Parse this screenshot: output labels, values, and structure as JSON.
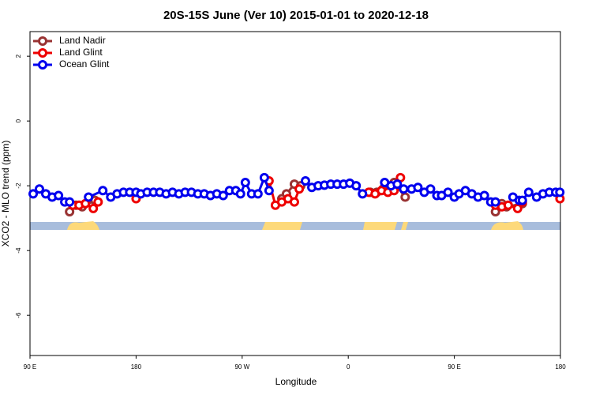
{
  "chart_data": {
    "type": "line",
    "title": "20S-15S June (Ver 10)   2015-01-01 to 2020-12-18",
    "x_label": "Longitude",
    "y_label": "XCO2 - MLO trend (ppm)",
    "xlim": [
      90,
      540
    ],
    "ylim": [
      -7.24,
      2.76
    ],
    "xticks": [
      {
        "value": 90,
        "label": "90 E"
      },
      180,
      {
        "value": 270,
        "label": "90 W"
      },
      {
        "value": 360,
        "label": "0"
      },
      {
        "value": 450,
        "label": "90 E"
      },
      {
        "value": 540,
        "label": "180"
      }
    ],
    "yticks": [
      2,
      0,
      -2,
      -4,
      -6
    ],
    "legend": "top-left",
    "series": [
      {
        "name": "Land Nadir",
        "color": "#993333",
        "x": [
          123.6,
          129,
          134.3,
          145.1,
          null,
          303.6,
          307.6,
          314.3,
          319.7,
          null,
          378.8,
          384.2,
          389.5,
          398.9,
          408.3,
          null,
          484.9,
          490.3,
          494.3,
          507.7
        ],
        "values": [
          -2.8,
          -2.6,
          -2.65,
          -2.45,
          null,
          -2.4,
          -2.25,
          -1.95,
          -2.0,
          null,
          -2.2,
          -2.2,
          -2.1,
          -1.9,
          -2.35,
          null,
          -2.8,
          -2.55,
          -2.65,
          -2.55
        ]
      },
      {
        "name": "Land Glint",
        "color": "#ee0000",
        "x": [
          126.3,
          131.6,
          137,
          143.7,
          147.8,
          null,
          180,
          null,
          292.8,
          298.2,
          303.6,
          308.9,
          314.3,
          318.4,
          null,
          377.4,
          382.8,
          388.2,
          393.6,
          398.9,
          404.3,
          null,
          484.9,
          490.3,
          495.7,
          503.7,
          507.7,
          null,
          539.6
        ],
        "values": [
          -2.6,
          -2.6,
          -2.55,
          -2.7,
          -2.5,
          null,
          -2.4,
          null,
          -1.85,
          -2.6,
          -2.5,
          -2.4,
          -2.5,
          -2.1,
          null,
          -2.2,
          -2.25,
          -2.15,
          -2.2,
          -2.15,
          -1.75,
          null,
          -2.6,
          -2.65,
          -2.6,
          -2.7,
          -2.5,
          null,
          -2.4
        ]
      },
      {
        "name": "Ocean Glint",
        "color": "#0000ee",
        "x": [
          92.7,
          98,
          103.4,
          108.8,
          114.2,
          119.5,
          123.6,
          null,
          139.7,
          151.8,
          158.5,
          163.9,
          169.3,
          174.6,
          180,
          184,
          189.4,
          194.8,
          200.1,
          205.5,
          210.9,
          216.3,
          221.6,
          227,
          232.4,
          237.8,
          243.1,
          248.5,
          253.9,
          259.2,
          264.6,
          268.6,
          272.7,
          278,
          283.4,
          288.8,
          292.8,
          null,
          323.7,
          329.1,
          334.5,
          339.8,
          345.2,
          350.6,
          356,
          361.3,
          366.7,
          372.1,
          null,
          390.9,
          396.3,
          401.6,
          407,
          413.7,
          419.1,
          424.5,
          429.8,
          435.2,
          439.2,
          444.6,
          450,
          454,
          459.4,
          464.8,
          470.1,
          475.5,
          480.9,
          484.9,
          null,
          499.7,
          505,
          507.7,
          513.1,
          519.8,
          525.2,
          530.6,
          536,
          539.5
        ],
        "values": [
          -2.25,
          -2.1,
          -2.25,
          -2.35,
          -2.3,
          -2.5,
          -2.5,
          null,
          -2.35,
          -2.15,
          -2.35,
          -2.25,
          -2.2,
          -2.2,
          -2.2,
          -2.25,
          -2.2,
          -2.2,
          -2.2,
          -2.25,
          -2.2,
          -2.25,
          -2.2,
          -2.2,
          -2.25,
          -2.25,
          -2.3,
          -2.25,
          -2.3,
          -2.15,
          -2.15,
          -2.25,
          -1.9,
          -2.25,
          -2.25,
          -1.75,
          -2.15,
          null,
          -1.85,
          -2.05,
          -2.0,
          -1.98,
          -1.95,
          -1.95,
          -1.95,
          -1.92,
          -2.0,
          -2.25,
          null,
          -1.9,
          -2.0,
          -1.95,
          -2.1,
          -2.1,
          -2.05,
          -2.2,
          -2.1,
          -2.3,
          -2.3,
          -2.2,
          -2.35,
          -2.25,
          -2.15,
          -2.25,
          -2.35,
          -2.3,
          -2.5,
          -2.5,
          null,
          -2.35,
          -2.45,
          -2.45,
          -2.2,
          -2.35,
          -2.25,
          -2.2,
          -2.2,
          -2.2
        ]
      }
    ]
  }
}
